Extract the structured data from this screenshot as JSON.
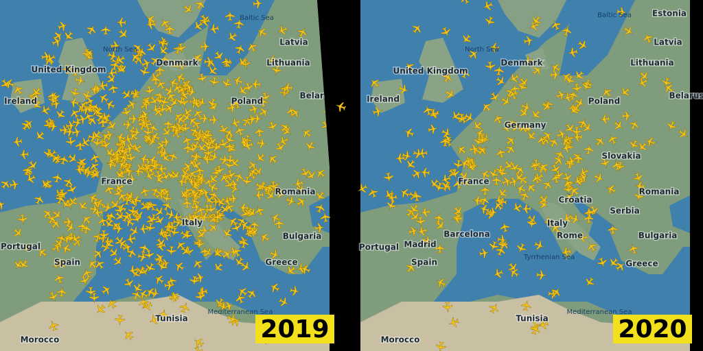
{
  "panels": [
    {
      "year": "2019",
      "labels": [
        "Baltic Sea",
        "North Sea",
        "Denmark",
        "Latvia",
        "Lithuania",
        "United Kingdom",
        "Ireland",
        "Poland",
        "Belarus",
        "France",
        "Portugal",
        "Spain",
        "Italy",
        "Romania",
        "Bulgaria",
        "Greece",
        "Tunisia",
        "Morocco",
        "Mediterranean Sea"
      ]
    },
    {
      "year": "2020",
      "labels": [
        "Baltic Sea",
        "Estonia",
        "North Sea",
        "Latvia",
        "Denmark",
        "Lithuania",
        "United Kingdom",
        "Ireland",
        "Poland",
        "Belarus",
        "Germany",
        "France",
        "Slovakia",
        "Croatia",
        "Romania",
        "Serbia",
        "Italy",
        "Barcelona",
        "Madrid",
        "Portugal",
        "Spain",
        "Rome",
        "Bulgaria",
        "Tyrrhenian Sea",
        "Greece",
        "Tunisia",
        "Mediterranean Sea",
        "Morocco"
      ]
    }
  ]
}
